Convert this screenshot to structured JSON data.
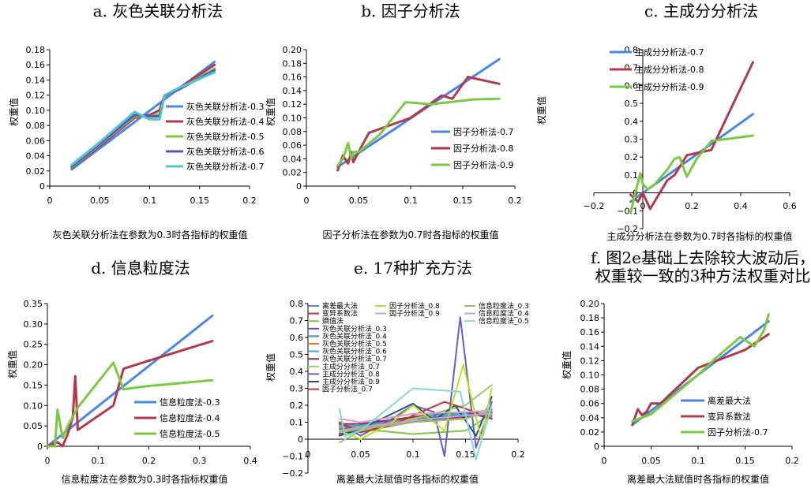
{
  "chart_data": [
    {
      "id": "a",
      "type": "line",
      "title": "a. 灰色关联分析法",
      "xlabel": "灰色关联分析法在参数为0.3时各指标的权重值",
      "ylabel": "权重值",
      "xlim": [
        0,
        0.2
      ],
      "ylim": [
        0,
        0.18
      ],
      "xticks": [
        0,
        0.05,
        0.1,
        0.15,
        0.2
      ],
      "xtick_labels": [
        "0",
        "0.05",
        "0.1",
        "0.15",
        "0.2"
      ],
      "yticks": [
        0,
        0.02,
        0.04,
        0.06,
        0.08,
        0.1,
        0.12,
        0.14,
        0.16,
        0.18
      ],
      "ytick_labels": [
        "0",
        "0.02",
        "0.04",
        "0.06",
        "0.08",
        "0.10",
        "0.12",
        "0.14",
        "0.16",
        "0.18"
      ],
      "legend_position": "center-right",
      "series": [
        {
          "name": "灰色关联分析法-0.3",
          "color": "#4a86e8",
          "x": [
            0.022,
            0.165
          ],
          "y": [
            0.022,
            0.164
          ]
        },
        {
          "name": "灰色关联分析法-0.4",
          "color": "#b03a4a",
          "x": [
            0.022,
            0.05,
            0.085,
            0.1,
            0.11,
            0.115,
            0.13,
            0.165
          ],
          "y": [
            0.024,
            0.053,
            0.09,
            0.094,
            0.1,
            0.12,
            0.13,
            0.16
          ]
        },
        {
          "name": "灰色关联分析法-0.5",
          "color": "#7ac943",
          "x": [
            0.022,
            0.05,
            0.085,
            0.1,
            0.11,
            0.115,
            0.13,
            0.165
          ],
          "y": [
            0.025,
            0.055,
            0.092,
            0.092,
            0.095,
            0.118,
            0.128,
            0.155
          ]
        },
        {
          "name": "灰色关联分析法-0.6",
          "color": "#5b4fc7",
          "x": [
            0.022,
            0.05,
            0.085,
            0.1,
            0.11,
            0.115,
            0.13,
            0.165
          ],
          "y": [
            0.026,
            0.056,
            0.094,
            0.092,
            0.092,
            0.119,
            0.128,
            0.153
          ]
        },
        {
          "name": "灰色关联分析法-0.7",
          "color": "#4ec8d0",
          "x": [
            0.022,
            0.05,
            0.085,
            0.1,
            0.11,
            0.115,
            0.13,
            0.165
          ],
          "y": [
            0.028,
            0.058,
            0.098,
            0.088,
            0.088,
            0.12,
            0.13,
            0.15
          ]
        }
      ]
    },
    {
      "id": "b",
      "type": "line",
      "title": "b. 因子分析法",
      "xlabel": "因子分析法在参数为0.7时各指标的权重值",
      "ylabel": "权重值",
      "xlim": [
        0,
        0.2
      ],
      "ylim": [
        0,
        0.2
      ],
      "xticks": [
        0,
        0.05,
        0.1,
        0.15,
        0.2
      ],
      "xtick_labels": [
        "0",
        "0.05",
        "0.1",
        "0.15",
        "0.2"
      ],
      "yticks": [
        0,
        0.02,
        0.04,
        0.06,
        0.08,
        0.1,
        0.12,
        0.14,
        0.16,
        0.18,
        0.2
      ],
      "ytick_labels": [
        "0",
        "0.02",
        "0.04",
        "0.06",
        "0.08",
        "0.10",
        "0.12",
        "0.14",
        "0.16",
        "0.18",
        "0.20"
      ],
      "legend_position": "lower-right",
      "series": [
        {
          "name": "因子分析法-0.7",
          "color": "#4a86e8",
          "x": [
            0.03,
            0.185
          ],
          "y": [
            0.028,
            0.186
          ]
        },
        {
          "name": "因子分析法-0.8",
          "color": "#b03a4a",
          "x": [
            0.03,
            0.035,
            0.04,
            0.043,
            0.045,
            0.05,
            0.06,
            0.1,
            0.13,
            0.14,
            0.155,
            0.185
          ],
          "y": [
            0.023,
            0.045,
            0.033,
            0.05,
            0.035,
            0.05,
            0.078,
            0.1,
            0.133,
            0.128,
            0.16,
            0.15
          ]
        },
        {
          "name": "因子分析法-0.9",
          "color": "#7ac943",
          "x": [
            0.03,
            0.035,
            0.04,
            0.043,
            0.045,
            0.05,
            0.07,
            0.095,
            0.12,
            0.16,
            0.185
          ],
          "y": [
            0.03,
            0.04,
            0.063,
            0.04,
            0.05,
            0.05,
            0.075,
            0.123,
            0.12,
            0.127,
            0.128
          ]
        }
      ]
    },
    {
      "id": "c",
      "type": "line",
      "title": "c. 主成分分析法",
      "xlabel": "主成分分析法在参数为0.7时各指标的权重值",
      "ylabel": "权重值",
      "xlim": [
        -0.2,
        0.6
      ],
      "ylim": [
        -0.2,
        0.8
      ],
      "xticks": [
        -0.2,
        0,
        0.2,
        0.4,
        0.6
      ],
      "xtick_labels": [
        "−0.2",
        "0",
        "0.2",
        "0.4",
        "0.6"
      ],
      "yticks": [
        -0.2,
        -0.1,
        0,
        0.1,
        0.2,
        0.3,
        0.4,
        0.5,
        0.6,
        0.7,
        0.8
      ],
      "ytick_labels": [
        "−0.2",
        "−0.1",
        "0",
        "0.1",
        "0.2",
        "0.3",
        "0.4",
        "0.5",
        "0.6",
        "0.7",
        "0.8"
      ],
      "legend_position": "top-left",
      "series": [
        {
          "name": "主成分分析法-0.7",
          "color": "#4a86e8",
          "x": [
            -0.05,
            0.45
          ],
          "y": [
            -0.05,
            0.44
          ]
        },
        {
          "name": "主成分分析法-0.8",
          "color": "#b03a4a",
          "x": [
            -0.05,
            -0.02,
            0,
            0.03,
            0.1,
            0.13,
            0.18,
            0.28,
            0.45
          ],
          "y": [
            -0.01,
            -0.05,
            0.0,
            -0.09,
            0.07,
            0.1,
            0.21,
            0.24,
            0.73
          ]
        },
        {
          "name": "主成分分析法-0.9",
          "color": "#7ac943",
          "x": [
            -0.05,
            -0.03,
            -0.01,
            0.0,
            0.02,
            0.05,
            0.1,
            0.13,
            0.15,
            0.18,
            0.22,
            0.28,
            0.45
          ],
          "y": [
            -0.11,
            0.0,
            0.11,
            0.05,
            0.02,
            0.05,
            0.13,
            0.19,
            0.2,
            0.09,
            0.19,
            0.29,
            0.32
          ]
        }
      ]
    },
    {
      "id": "d",
      "type": "line",
      "title": "d. 信息粒度法",
      "xlabel": "信息粒度法在参数为0.3时各指标权重值",
      "ylabel": "权重值",
      "xlim": [
        0,
        0.4
      ],
      "ylim": [
        0,
        0.35
      ],
      "xticks": [
        0,
        0.1,
        0.2,
        0.3,
        0.4
      ],
      "xtick_labels": [
        "0",
        "0.1",
        "0.2",
        "0.3",
        "0.4"
      ],
      "yticks": [
        0,
        0.05,
        0.1,
        0.15,
        0.2,
        0.25,
        0.3,
        0.35
      ],
      "ytick_labels": [
        "0",
        "0.05",
        "0.10",
        "0.15",
        "0.20",
        "0.25",
        "0.30",
        "0.35"
      ],
      "legend_position": "lower-right",
      "series": [
        {
          "name": "信息粒度法-0.3",
          "color": "#4a86e8",
          "x": [
            0,
            0.325
          ],
          "y": [
            0,
            0.32
          ]
        },
        {
          "name": "信息粒度法-0.4",
          "color": "#b03a4a",
          "x": [
            0,
            0.02,
            0.03,
            0.04,
            0.05,
            0.055,
            0.06,
            0.13,
            0.15,
            0.2,
            0.325
          ],
          "y": [
            0,
            0.01,
            0.0,
            0.03,
            0.07,
            0.172,
            0.04,
            0.1,
            0.19,
            0.21,
            0.258
          ]
        },
        {
          "name": "信息粒度法-0.5",
          "color": "#7ac943",
          "x": [
            0,
            0.015,
            0.02,
            0.03,
            0.04,
            0.06,
            0.13,
            0.15,
            0.2,
            0.325
          ],
          "y": [
            0,
            0.0,
            0.09,
            0.02,
            0.05,
            0.095,
            0.205,
            0.14,
            0.148,
            0.162
          ]
        }
      ]
    },
    {
      "id": "e",
      "type": "line",
      "title": "e. 17种扩充方法",
      "xlabel": "离差最大法赋值时各指标的权重值",
      "ylabel": "权重值",
      "xlim": [
        0,
        0.2
      ],
      "ylim": [
        -0.2,
        0.8
      ],
      "xticks": [
        0,
        0.05,
        0.1,
        0.15,
        0.2
      ],
      "xtick_labels": [
        "0",
        "0.05",
        "0.1",
        "0.15",
        "0.2"
      ],
      "yticks": [
        -0.2,
        -0.1,
        0,
        0.1,
        0.2,
        0.3,
        0.4,
        0.5,
        0.6,
        0.7,
        0.8
      ],
      "ytick_labels": [
        "−0.2",
        "−0.1",
        "0",
        "0.1",
        "0.2",
        "0.3",
        "0.4",
        "0.5",
        "0.6",
        "0.7",
        "0.8"
      ],
      "legend_position": "top",
      "series": [
        {
          "name": "离差最大法",
          "color": "#4a86e8",
          "x": [
            0.03,
            0.175
          ],
          "y": [
            0.03,
            0.175
          ]
        },
        {
          "name": "变异系数法",
          "color": "#b03a4a",
          "x": [
            0.03,
            0.05,
            0.1,
            0.15,
            0.175
          ],
          "y": [
            0.03,
            0.06,
            0.11,
            0.13,
            0.155
          ]
        },
        {
          "name": "熵值法",
          "color": "#7ac943",
          "x": [
            0.03,
            0.05,
            0.1,
            0.15,
            0.175
          ],
          "y": [
            0.09,
            0.06,
            0.03,
            0.05,
            0.15
          ]
        },
        {
          "name": "灰色关联分析法_0.3",
          "color": "#5b4fc7",
          "x": [
            0.03,
            0.05,
            0.1,
            0.12,
            0.15,
            0.175
          ],
          "y": [
            0.05,
            0.07,
            0.11,
            0.12,
            0.14,
            0.15
          ]
        },
        {
          "name": "灰色关联分析法_0.4",
          "color": "#2aa198",
          "x": [
            0.03,
            0.05,
            0.1,
            0.12,
            0.15,
            0.175
          ],
          "y": [
            0.06,
            0.07,
            0.12,
            0.13,
            0.14,
            0.16
          ]
        },
        {
          "name": "灰色关联分析法_0.5",
          "color": "#e67e22",
          "x": [
            0.03,
            0.05,
            0.1,
            0.12,
            0.15,
            0.175
          ],
          "y": [
            0.07,
            0.08,
            0.12,
            0.14,
            0.15,
            0.14
          ]
        },
        {
          "name": "灰色关联分析法_0.6",
          "color": "#3ab0d8",
          "x": [
            0.03,
            0.05,
            0.1,
            0.12,
            0.15,
            0.175
          ],
          "y": [
            0.08,
            0.08,
            0.13,
            0.14,
            0.15,
            0.13
          ]
        },
        {
          "name": "灰色关联分析法_0.7",
          "color": "#8e2d5a",
          "x": [
            0.03,
            0.05,
            0.1,
            0.12,
            0.15,
            0.175
          ],
          "y": [
            0.09,
            0.09,
            0.13,
            0.15,
            0.16,
            0.12
          ]
        },
        {
          "name": "主成分分析法_0.7",
          "color": "#9acd6a",
          "x": [
            0.03,
            0.05,
            0.1,
            0.15,
            0.175
          ],
          "y": [
            -0.02,
            0.05,
            0.12,
            0.2,
            0.32
          ]
        },
        {
          "name": "主成分分析法_0.8",
          "color": "#6a5acd",
          "x": [
            0.03,
            0.05,
            0.08,
            0.1,
            0.12,
            0.13,
            0.145,
            0.16,
            0.175
          ],
          "y": [
            0.1,
            0.02,
            0.12,
            0.2,
            0.16,
            -0.1,
            0.72,
            -0.05,
            0.22
          ]
        },
        {
          "name": "主成分分析法_0.9",
          "color": "#1f4e9c",
          "x": [
            0.03,
            0.05,
            0.1,
            0.12,
            0.14,
            0.16,
            0.175
          ],
          "y": [
            0.02,
            0.06,
            0.21,
            0.11,
            0.2,
            0.02,
            0.25
          ]
        },
        {
          "name": "因子分析法_0.7",
          "color": "#c0392b",
          "x": [
            0.03,
            0.05,
            0.08,
            0.1,
            0.13,
            0.15,
            0.175
          ],
          "y": [
            0.1,
            0.04,
            0.08,
            0.14,
            0.22,
            0.18,
            0.12
          ]
        },
        {
          "name": "因子分析法_0.8",
          "color": "#b5e61d",
          "x": [
            0.03,
            0.05,
            0.08,
            0.1,
            0.13,
            0.148,
            0.165,
            0.175
          ],
          "y": [
            0.05,
            0.0,
            0.1,
            0.2,
            0.05,
            0.44,
            0.0,
            0.3
          ]
        },
        {
          "name": "因子分析法_0.9",
          "color": "#d8a0c0",
          "x": [
            0.03,
            0.05,
            0.1,
            0.15,
            0.175
          ],
          "y": [
            0.12,
            0.1,
            0.15,
            0.16,
            0.17
          ]
        },
        {
          "name": "信息粒度法_0.3",
          "color": "#a6b85c",
          "x": [
            0.03,
            0.05,
            0.1,
            0.15,
            0.175
          ],
          "y": [
            0.04,
            0.06,
            0.1,
            0.12,
            0.17
          ]
        },
        {
          "name": "信息粒度法_0.4",
          "color": "#b8a8e0",
          "x": [
            0.03,
            0.05,
            0.1,
            0.15,
            0.175
          ],
          "y": [
            0.05,
            0.07,
            0.11,
            0.14,
            0.15
          ]
        },
        {
          "name": "信息粒度法_0.5",
          "color": "#86d4e0",
          "x": [
            0.03,
            0.035,
            0.05,
            0.1,
            0.145,
            0.16,
            0.175
          ],
          "y": [
            0.18,
            0.02,
            0.05,
            0.3,
            0.28,
            -0.12,
            0.2
          ]
        }
      ]
    },
    {
      "id": "f",
      "type": "line",
      "title": "f. 图2e基础上去除较大波动后，",
      "title_line2": "权重较一致的3种方法权重对比",
      "xlabel": "离差最大法赋值时各指标的权重值",
      "ylabel": "权重值",
      "xlim": [
        0,
        0.2
      ],
      "ylim": [
        0,
        0.2
      ],
      "xticks": [
        0,
        0.05,
        0.1,
        0.15,
        0.2
      ],
      "xtick_labels": [
        "0",
        "0.05",
        "0.1",
        "0.15",
        "0.2"
      ],
      "yticks": [
        0,
        0.02,
        0.04,
        0.06,
        0.08,
        0.1,
        0.12,
        0.14,
        0.16,
        0.18,
        0.2
      ],
      "ytick_labels": [
        "0",
        "0.02",
        "0.04",
        "0.06",
        "0.08",
        "0.10",
        "0.12",
        "0.14",
        "0.16",
        "0.18",
        "0.20"
      ],
      "legend_position": "lower-right",
      "series": [
        {
          "name": "离差最大法",
          "color": "#4a86e8",
          "x": [
            0.03,
            0.175
          ],
          "y": [
            0.03,
            0.175
          ]
        },
        {
          "name": "变异系数法",
          "color": "#b03a4a",
          "x": [
            0.03,
            0.036,
            0.04,
            0.045,
            0.05,
            0.06,
            0.1,
            0.11,
            0.15,
            0.175
          ],
          "y": [
            0.03,
            0.052,
            0.044,
            0.048,
            0.06,
            0.06,
            0.11,
            0.115,
            0.135,
            0.157
          ]
        },
        {
          "name": "因子分析法-0.7",
          "color": "#7ac943",
          "x": [
            0.03,
            0.05,
            0.1,
            0.12,
            0.145,
            0.16,
            0.17,
            0.175
          ],
          "y": [
            0.035,
            0.045,
            0.1,
            0.125,
            0.153,
            0.14,
            0.162,
            0.185
          ]
        }
      ]
    }
  ]
}
